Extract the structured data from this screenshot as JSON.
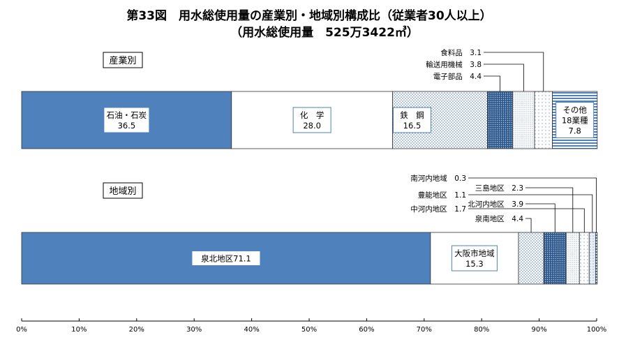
{
  "title": "第33図　用水総使用量の産業別・地域別構成比（従業者30人以上）",
  "subtitle": "（用水総使用量　525万3422㎥）",
  "chart_data": [
    {
      "type": "bar",
      "orientation": "horizontal-stacked-100",
      "section_label": "産業別",
      "categories": [
        "石油・石炭",
        "化　学",
        "鉄　鋼",
        "電子部品",
        "輸送用機械",
        "食料品",
        "その他18業種"
      ],
      "values": [
        36.5,
        28.0,
        16.5,
        4.4,
        3.8,
        3.1,
        7.8
      ],
      "inside_labels": [
        {
          "name": "石油・石炭",
          "value": "36.5"
        },
        {
          "name": "化　学",
          "value": "28.0"
        },
        {
          "name": "鉄　鋼",
          "value": "16.5"
        },
        {
          "name1": "その他",
          "name2": "18業種",
          "value": "7.8"
        }
      ],
      "callouts": [
        {
          "text": "食料品",
          "value": "3.1"
        },
        {
          "text": "輸送用機械",
          "value": "3.8"
        },
        {
          "text": "電子部品",
          "value": "4.4"
        }
      ]
    },
    {
      "type": "bar",
      "orientation": "horizontal-stacked-100",
      "section_label": "地域別",
      "categories": [
        "泉北地区",
        "大阪市地域",
        "泉南地区",
        "北河内地区",
        "三島地区",
        "中河内地区",
        "豊能地区",
        "南河内地域"
      ],
      "values": [
        71.1,
        15.3,
        4.4,
        3.9,
        2.3,
        1.7,
        1.1,
        0.3
      ],
      "inside_labels": [
        {
          "text": "泉北地区71.1"
        },
        {
          "name": "大阪市地域",
          "value": "15.3"
        }
      ],
      "callouts": [
        {
          "text": "南河内地域",
          "value": "0.3"
        },
        {
          "text": "豊能地区",
          "value": "1.1"
        },
        {
          "text": "中河内地区",
          "value": "1.7"
        },
        {
          "text": "三島地区",
          "value": "2.3"
        },
        {
          "text": "北河内地区",
          "value": "3.9"
        },
        {
          "text": "泉南地区",
          "value": "4.4"
        }
      ]
    }
  ],
  "xaxis": {
    "ticks": [
      "0%",
      "10%",
      "20%",
      "30%",
      "40%",
      "50%",
      "60%",
      "70%",
      "80%",
      "90%",
      "100%"
    ],
    "range": [
      0,
      100
    ]
  },
  "colors": {
    "solid": "#4f81bd",
    "stroke": "#333333"
  }
}
